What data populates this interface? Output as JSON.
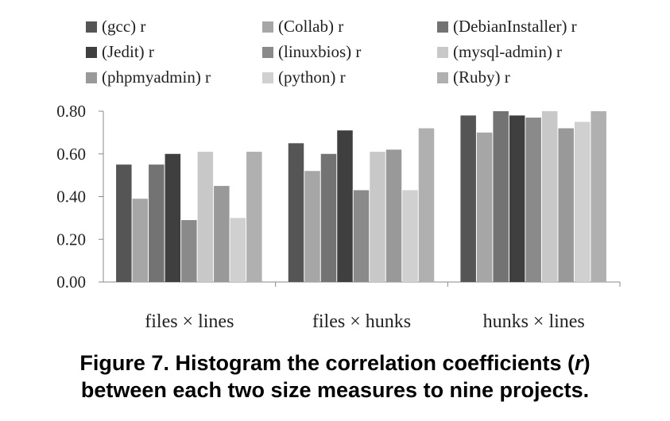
{
  "chart_data": {
    "type": "bar",
    "categories": [
      "files × lines",
      "files × hunks",
      "hunks × lines"
    ],
    "series": [
      {
        "name": "(gcc) r",
        "color": "#555555",
        "values": [
          0.55,
          0.65,
          0.78
        ]
      },
      {
        "name": "(Collab) r",
        "color": "#a6a6a6",
        "values": [
          0.39,
          0.52,
          0.7
        ]
      },
      {
        "name": "(DebianInstaller) r",
        "color": "#737373",
        "values": [
          0.55,
          0.6,
          0.8
        ]
      },
      {
        "name": "(Jedit) r",
        "color": "#3f3f3f",
        "values": [
          0.6,
          0.71,
          0.78
        ]
      },
      {
        "name": "(linuxbios) r",
        "color": "#8a8a8a",
        "values": [
          0.29,
          0.43,
          0.77
        ]
      },
      {
        "name": "(mysql-admin) r",
        "color": "#c8c8c8",
        "values": [
          0.61,
          0.61,
          0.8
        ]
      },
      {
        "name": "(phpmyadmin) r",
        "color": "#999999",
        "values": [
          0.45,
          0.62,
          0.72
        ]
      },
      {
        "name": "(python) r",
        "color": "#d0d0d0",
        "values": [
          0.3,
          0.43,
          0.75
        ]
      },
      {
        "name": "(Ruby) r",
        "color": "#b0b0b0",
        "values": [
          0.61,
          0.72,
          0.8
        ]
      }
    ],
    "ylim": [
      0,
      0.8
    ],
    "yticks": [
      "0.00",
      "0.20",
      "0.40",
      "0.60",
      "0.80"
    ],
    "ytick_values": [
      0,
      0.2,
      0.4,
      0.6,
      0.8
    ],
    "grid": false,
    "legend_position": "top",
    "title": "",
    "xlabel": "",
    "ylabel": ""
  },
  "caption": {
    "line1_a": "Figure 7.  Histogram the correlation coefficients (",
    "line1_var": "r",
    "line1_b": ")",
    "line2": "between each two size measures to nine projects."
  }
}
